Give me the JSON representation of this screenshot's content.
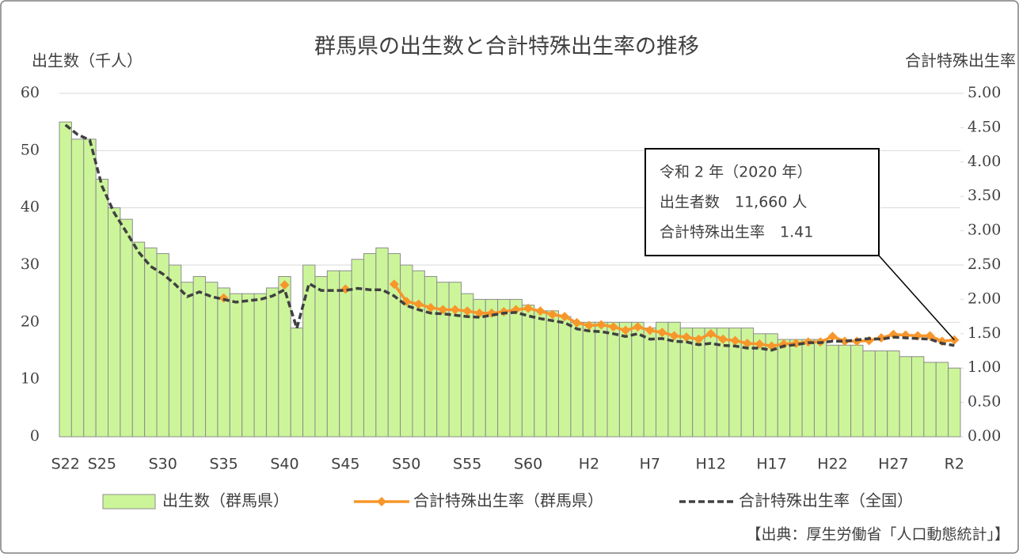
{
  "chart_data": {
    "type": "bar-line",
    "title": "群馬県の出生数と合計特殊出生率の推移",
    "y_label": "出生数（千人）",
    "y2_label": "合計特殊出生率",
    "source": "【出典：厚生労働省「人口動態統計」】",
    "annotation": [
      "令和 2 年（2020 年）",
      "出生者数　11,660 人",
      "合計特殊出生率　1.41"
    ],
    "categories": [
      "S22",
      null,
      null,
      "S25",
      null,
      null,
      null,
      null,
      "S30",
      null,
      null,
      null,
      null,
      "S35",
      null,
      null,
      null,
      null,
      "S40",
      null,
      null,
      null,
      null,
      "S45",
      null,
      null,
      null,
      null,
      "S50",
      null,
      null,
      null,
      null,
      "S55",
      null,
      null,
      null,
      null,
      "S60",
      null,
      null,
      null,
      null,
      "H2",
      null,
      null,
      null,
      null,
      "H7",
      null,
      null,
      null,
      null,
      "H12",
      null,
      null,
      null,
      null,
      "H17",
      null,
      null,
      null,
      null,
      "H22",
      null,
      null,
      null,
      null,
      "H27",
      null,
      null,
      null,
      null,
      "R2"
    ],
    "ylim": [
      0,
      60
    ],
    "yticks": [
      0,
      10,
      20,
      30,
      40,
      50,
      60
    ],
    "y2lim": [
      0,
      5
    ],
    "y2ticks": [
      {
        "value": 0,
        "label": "0.00"
      },
      {
        "value": 0.5,
        "label": "0.50"
      },
      {
        "value": 1,
        "label": "1.00"
      },
      {
        "value": 1.5,
        "label": "1.50"
      },
      {
        "value": 2,
        "label": "2.00"
      },
      {
        "value": 2.5,
        "label": "2.50"
      },
      {
        "value": 3,
        "label": "3.00"
      },
      {
        "value": 3.5,
        "label": "3.50"
      },
      {
        "value": 4,
        "label": "4.00"
      },
      {
        "value": 4.5,
        "label": "4.50"
      },
      {
        "value": 5,
        "label": "5.00"
      }
    ],
    "grid": true,
    "series": [
      {
        "name": "出生数（群馬県）",
        "type": "bar",
        "color": "#ccf59a",
        "values": [
          55,
          52,
          52,
          45,
          40,
          38,
          34,
          33,
          32,
          30,
          27,
          28,
          27,
          26,
          25,
          25,
          25,
          26,
          28,
          19,
          30,
          28,
          29,
          29,
          31,
          32,
          33,
          32,
          30,
          29,
          28,
          27,
          27,
          25,
          24,
          24,
          24,
          24,
          23,
          22,
          22,
          21,
          20,
          20,
          20,
          20,
          20,
          20,
          19,
          20,
          20,
          19,
          19,
          19,
          19,
          19,
          19,
          18,
          18,
          17,
          17,
          17,
          17,
          16,
          16,
          16,
          15,
          15,
          15,
          14,
          14,
          13,
          13,
          12
        ]
      },
      {
        "name": "合計特殊出生率（群馬県）",
        "type": "line",
        "axis": "y2",
        "color": "#f7962b",
        "marker": "diamond",
        "dash": false,
        "values": [
          null,
          null,
          null,
          null,
          null,
          null,
          null,
          null,
          null,
          null,
          null,
          null,
          null,
          2.02,
          null,
          null,
          null,
          null,
          2.21,
          null,
          null,
          null,
          null,
          2.15,
          null,
          null,
          null,
          2.22,
          1.97,
          1.93,
          1.88,
          1.85,
          1.85,
          1.83,
          1.8,
          1.8,
          1.82,
          1.85,
          1.87,
          1.83,
          1.78,
          1.75,
          1.66,
          1.62,
          1.63,
          1.6,
          1.55,
          1.6,
          1.55,
          1.52,
          1.47,
          1.45,
          1.42,
          1.5,
          1.42,
          1.4,
          1.36,
          1.35,
          1.32,
          1.35,
          1.36,
          1.38,
          1.38,
          1.46,
          1.39,
          1.39,
          1.4,
          1.44,
          1.49,
          1.48,
          1.47,
          1.47,
          1.39,
          1.41
        ]
      },
      {
        "name": "合計特殊出生率（全国）",
        "type": "line",
        "axis": "y2",
        "color": "#404040",
        "marker": "none",
        "dash": true,
        "values": [
          4.54,
          4.4,
          4.32,
          3.65,
          3.26,
          2.98,
          2.69,
          2.48,
          2.37,
          2.22,
          2.04,
          2.11,
          2.04,
          2.0,
          1.96,
          1.98,
          2.0,
          2.05,
          2.14,
          1.58,
          2.23,
          2.13,
          2.13,
          2.13,
          2.16,
          2.14,
          2.14,
          2.05,
          1.91,
          1.85,
          1.8,
          1.79,
          1.77,
          1.75,
          1.74,
          1.77,
          1.8,
          1.81,
          1.76,
          1.72,
          1.69,
          1.66,
          1.57,
          1.54,
          1.53,
          1.5,
          1.46,
          1.5,
          1.42,
          1.43,
          1.39,
          1.38,
          1.34,
          1.36,
          1.33,
          1.32,
          1.29,
          1.29,
          1.26,
          1.32,
          1.34,
          1.37,
          1.37,
          1.39,
          1.39,
          1.41,
          1.43,
          1.42,
          1.45,
          1.44,
          1.43,
          1.42,
          1.36,
          1.33
        ]
      }
    ]
  }
}
